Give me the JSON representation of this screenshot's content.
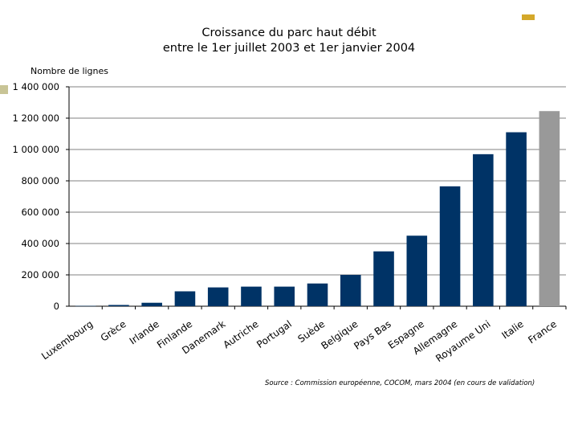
{
  "colors": {
    "accent": "#D4A82A",
    "marker": "#C8C496",
    "bar": "#003366",
    "highlight": "#999999",
    "grid": "#808080"
  },
  "chart_data": {
    "type": "bar",
    "title": [
      "Croissance du parc haut débit",
      "entre le 1er juillet 2003 et 1er janvier 2004"
    ],
    "ylabel": "Nombre de lignes",
    "xlabel": "",
    "ylim": [
      0,
      1400000
    ],
    "yticks": [
      0,
      200000,
      400000,
      600000,
      800000,
      1000000,
      1200000,
      1400000
    ],
    "ytick_labels": [
      "0",
      "200 000",
      "400 000",
      "600 000",
      "800 000",
      "1 000 000",
      "1 200 000",
      "1 400 000"
    ],
    "grid": true,
    "categories": [
      "Luxembourg",
      "Grèce",
      "Irlande",
      "Finlande",
      "Danemark",
      "Autriche",
      "Portugal",
      "Suède",
      "Belgique",
      "Pays Bas",
      "Espagne",
      "Allemagne",
      "Royaume Uni",
      "Italie",
      "France"
    ],
    "values": [
      2000,
      8000,
      22000,
      95000,
      120000,
      125000,
      125000,
      145000,
      200000,
      350000,
      450000,
      765000,
      970000,
      1110000,
      1245000
    ],
    "highlight_category": "France",
    "source": "Source : Commission européenne, COCOM, mars 2004 (en cours de validation)"
  }
}
